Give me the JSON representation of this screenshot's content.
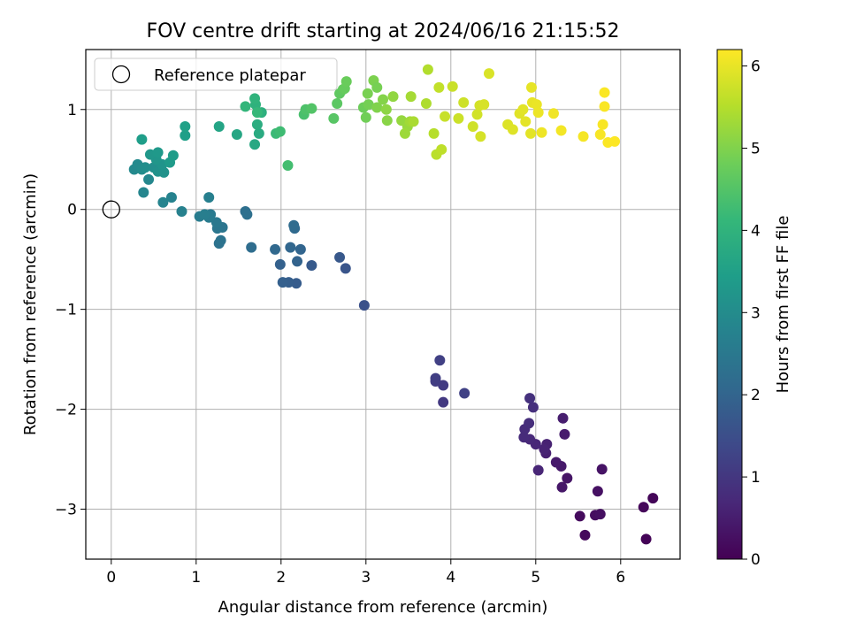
{
  "chart_data": {
    "type": "scatter",
    "title": "FOV centre drift starting at 2024/06/16 21:15:52",
    "xlabel": "Angular distance from reference (arcmin)",
    "ylabel": "Rotation from reference (arcmin)",
    "xlim": [
      -0.3,
      6.7
    ],
    "ylim": [
      -3.5,
      1.6
    ],
    "xticks": [
      0,
      1,
      2,
      3,
      4,
      5,
      6
    ],
    "yticks": [
      -3,
      -2,
      -1,
      0,
      1
    ],
    "grid": true,
    "legend": {
      "position": "top-left",
      "entries": [
        "Reference platepar"
      ]
    },
    "reference_point": {
      "x": 0,
      "y": 0
    },
    "colorbar": {
      "label": "Hours from first FF file",
      "min": 0,
      "max": 6.2,
      "ticks": [
        0,
        1,
        2,
        3,
        4,
        5,
        6
      ],
      "colormap": "viridis",
      "colormap_stops": [
        "#440154",
        "#482878",
        "#3e4989",
        "#31688e",
        "#26828e",
        "#1f9e89",
        "#35b779",
        "#6ece58",
        "#b5de2b",
        "#fde725"
      ]
    },
    "points": [
      {
        "x": 6.3,
        "y": -3.3,
        "t": 0.05
      },
      {
        "x": 6.38,
        "y": -2.89,
        "t": 0.08
      },
      {
        "x": 6.27,
        "y": -2.98,
        "t": 0.12
      },
      {
        "x": 5.58,
        "y": -3.26,
        "t": 0.15
      },
      {
        "x": 5.52,
        "y": -3.07,
        "t": 0.18
      },
      {
        "x": 5.7,
        "y": -3.06,
        "t": 0.22
      },
      {
        "x": 5.76,
        "y": -3.05,
        "t": 0.25
      },
      {
        "x": 5.73,
        "y": -2.82,
        "t": 0.28
      },
      {
        "x": 5.78,
        "y": -2.6,
        "t": 0.32
      },
      {
        "x": 5.37,
        "y": -2.69,
        "t": 0.35
      },
      {
        "x": 5.31,
        "y": -2.78,
        "t": 0.38
      },
      {
        "x": 5.3,
        "y": -2.57,
        "t": 0.42
      },
      {
        "x": 5.24,
        "y": -2.53,
        "t": 0.45
      },
      {
        "x": 5.34,
        "y": -2.25,
        "t": 0.48
      },
      {
        "x": 5.32,
        "y": -2.09,
        "t": 0.52
      },
      {
        "x": 5.12,
        "y": -2.44,
        "t": 0.55
      },
      {
        "x": 5.13,
        "y": -2.35,
        "t": 0.58
      },
      {
        "x": 5.1,
        "y": -2.4,
        "t": 0.62
      },
      {
        "x": 5.03,
        "y": -2.61,
        "t": 0.65
      },
      {
        "x": 5.0,
        "y": -2.35,
        "t": 0.68
      },
      {
        "x": 4.93,
        "y": -2.3,
        "t": 0.72
      },
      {
        "x": 4.86,
        "y": -2.28,
        "t": 0.75
      },
      {
        "x": 4.87,
        "y": -2.2,
        "t": 0.78
      },
      {
        "x": 4.92,
        "y": -2.14,
        "t": 0.82
      },
      {
        "x": 4.97,
        "y": -1.98,
        "t": 0.85
      },
      {
        "x": 4.93,
        "y": -1.89,
        "t": 0.88
      },
      {
        "x": 3.91,
        "y": -1.93,
        "t": 1.05
      },
      {
        "x": 3.91,
        "y": -1.76,
        "t": 1.08
      },
      {
        "x": 3.82,
        "y": -1.72,
        "t": 1.12
      },
      {
        "x": 3.82,
        "y": -1.69,
        "t": 1.15
      },
      {
        "x": 3.87,
        "y": -1.51,
        "t": 1.18
      },
      {
        "x": 4.16,
        "y": -1.84,
        "t": 1.22
      },
      {
        "x": 2.98,
        "y": -0.96,
        "t": 1.55
      },
      {
        "x": 2.76,
        "y": -0.59,
        "t": 1.65
      },
      {
        "x": 2.69,
        "y": -0.48,
        "t": 1.7
      },
      {
        "x": 2.36,
        "y": -0.56,
        "t": 1.75
      },
      {
        "x": 2.18,
        "y": -0.74,
        "t": 1.8
      },
      {
        "x": 2.09,
        "y": -0.73,
        "t": 1.84
      },
      {
        "x": 2.02,
        "y": -0.73,
        "t": 1.88
      },
      {
        "x": 1.99,
        "y": -0.55,
        "t": 1.92
      },
      {
        "x": 2.19,
        "y": -0.52,
        "t": 1.96
      },
      {
        "x": 2.23,
        "y": -0.4,
        "t": 2.0
      },
      {
        "x": 2.11,
        "y": -0.38,
        "t": 2.04
      },
      {
        "x": 1.93,
        "y": -0.4,
        "t": 2.08
      },
      {
        "x": 2.16,
        "y": -0.19,
        "t": 2.12
      },
      {
        "x": 2.15,
        "y": -0.16,
        "t": 2.16
      },
      {
        "x": 1.65,
        "y": -0.38,
        "t": 2.2
      },
      {
        "x": 1.58,
        "y": -0.02,
        "t": 2.24
      },
      {
        "x": 1.6,
        "y": -0.05,
        "t": 2.28
      },
      {
        "x": 1.27,
        "y": -0.34,
        "t": 2.32
      },
      {
        "x": 1.29,
        "y": -0.31,
        "t": 2.36
      },
      {
        "x": 1.31,
        "y": -0.18,
        "t": 2.4
      },
      {
        "x": 1.25,
        "y": -0.19,
        "t": 2.44
      },
      {
        "x": 1.24,
        "y": -0.13,
        "t": 2.48
      },
      {
        "x": 1.17,
        "y": -0.05,
        "t": 2.52
      },
      {
        "x": 1.15,
        "y": -0.08,
        "t": 2.56
      },
      {
        "x": 1.04,
        "y": -0.07,
        "t": 2.6
      },
      {
        "x": 1.1,
        "y": -0.05,
        "t": 2.64
      },
      {
        "x": 1.15,
        "y": 0.12,
        "t": 2.68
      },
      {
        "x": 0.83,
        "y": -0.02,
        "t": 2.72
      },
      {
        "x": 0.71,
        "y": 0.12,
        "t": 2.76
      },
      {
        "x": 0.61,
        "y": 0.07,
        "t": 2.8
      },
      {
        "x": 0.38,
        "y": 0.17,
        "t": 2.84
      },
      {
        "x": 0.44,
        "y": 0.3,
        "t": 2.88
      },
      {
        "x": 0.27,
        "y": 0.4,
        "t": 2.92
      },
      {
        "x": 0.31,
        "y": 0.45,
        "t": 2.96
      },
      {
        "x": 0.36,
        "y": 0.4,
        "t": 3.0
      },
      {
        "x": 0.4,
        "y": 0.42,
        "t": 3.04
      },
      {
        "x": 0.5,
        "y": 0.42,
        "t": 3.08
      },
      {
        "x": 0.55,
        "y": 0.38,
        "t": 3.12
      },
      {
        "x": 0.62,
        "y": 0.37,
        "t": 3.16
      },
      {
        "x": 0.6,
        "y": 0.45,
        "t": 3.2
      },
      {
        "x": 0.53,
        "y": 0.5,
        "t": 3.24
      },
      {
        "x": 0.46,
        "y": 0.55,
        "t": 3.28
      },
      {
        "x": 0.55,
        "y": 0.57,
        "t": 3.32
      },
      {
        "x": 0.69,
        "y": 0.47,
        "t": 3.36
      },
      {
        "x": 0.73,
        "y": 0.54,
        "t": 3.4
      },
      {
        "x": 0.36,
        "y": 0.7,
        "t": 3.44
      },
      {
        "x": 0.87,
        "y": 0.74,
        "t": 3.48
      },
      {
        "x": 0.87,
        "y": 0.83,
        "t": 3.52
      },
      {
        "x": 1.27,
        "y": 0.83,
        "t": 3.6
      },
      {
        "x": 1.48,
        "y": 0.75,
        "t": 3.66
      },
      {
        "x": 1.69,
        "y": 0.65,
        "t": 3.72
      },
      {
        "x": 1.74,
        "y": 0.76,
        "t": 3.78
      },
      {
        "x": 1.72,
        "y": 0.85,
        "t": 3.84
      },
      {
        "x": 1.77,
        "y": 0.97,
        "t": 3.9
      },
      {
        "x": 1.7,
        "y": 1.05,
        "t": 3.96
      },
      {
        "x": 1.69,
        "y": 1.11,
        "t": 4.02
      },
      {
        "x": 1.58,
        "y": 1.03,
        "t": 4.08
      },
      {
        "x": 1.72,
        "y": 0.97,
        "t": 4.14
      },
      {
        "x": 1.94,
        "y": 0.76,
        "t": 4.2
      },
      {
        "x": 1.99,
        "y": 0.78,
        "t": 4.26
      },
      {
        "x": 2.08,
        "y": 0.44,
        "t": 4.32
      },
      {
        "x": 2.27,
        "y": 0.95,
        "t": 4.38
      },
      {
        "x": 2.29,
        "y": 1.0,
        "t": 4.44
      },
      {
        "x": 2.36,
        "y": 1.01,
        "t": 4.5
      },
      {
        "x": 2.62,
        "y": 0.91,
        "t": 4.56
      },
      {
        "x": 2.66,
        "y": 1.06,
        "t": 4.6
      },
      {
        "x": 2.69,
        "y": 1.16,
        "t": 4.64
      },
      {
        "x": 2.73,
        "y": 1.2,
        "t": 4.68
      },
      {
        "x": 2.75,
        "y": 1.21,
        "t": 4.72
      },
      {
        "x": 2.77,
        "y": 1.28,
        "t": 4.76
      },
      {
        "x": 2.97,
        "y": 1.02,
        "t": 4.8
      },
      {
        "x": 3.0,
        "y": 0.92,
        "t": 4.84
      },
      {
        "x": 3.03,
        "y": 1.05,
        "t": 4.88
      },
      {
        "x": 3.02,
        "y": 1.16,
        "t": 4.92
      },
      {
        "x": 3.09,
        "y": 1.29,
        "t": 4.96
      },
      {
        "x": 3.13,
        "y": 1.02,
        "t": 5.0
      },
      {
        "x": 3.2,
        "y": 1.1,
        "t": 5.04
      },
      {
        "x": 3.25,
        "y": 0.89,
        "t": 5.08
      },
      {
        "x": 3.24,
        "y": 1.0,
        "t": 5.12
      },
      {
        "x": 3.32,
        "y": 1.13,
        "t": 5.16
      },
      {
        "x": 3.42,
        "y": 0.89,
        "t": 5.2
      },
      {
        "x": 3.49,
        "y": 0.83,
        "t": 5.24
      },
      {
        "x": 3.46,
        "y": 0.76,
        "t": 5.28
      },
      {
        "x": 3.52,
        "y": 0.88,
        "t": 5.32
      },
      {
        "x": 3.53,
        "y": 1.13,
        "t": 5.36
      },
      {
        "x": 3.56,
        "y": 0.88,
        "t": 5.4
      },
      {
        "x": 3.71,
        "y": 1.06,
        "t": 5.44
      },
      {
        "x": 3.73,
        "y": 1.4,
        "t": 5.48
      },
      {
        "x": 3.8,
        "y": 0.76,
        "t": 5.52
      },
      {
        "x": 3.83,
        "y": 0.55,
        "t": 5.56
      },
      {
        "x": 3.89,
        "y": 0.6,
        "t": 5.6
      },
      {
        "x": 3.86,
        "y": 1.22,
        "t": 5.64
      },
      {
        "x": 3.93,
        "y": 0.93,
        "t": 5.68
      },
      {
        "x": 4.02,
        "y": 1.23,
        "t": 5.7
      },
      {
        "x": 4.09,
        "y": 0.91,
        "t": 5.72
      },
      {
        "x": 4.15,
        "y": 1.07,
        "t": 5.74
      },
      {
        "x": 4.26,
        "y": 0.83,
        "t": 5.76
      },
      {
        "x": 4.31,
        "y": 0.95,
        "t": 5.78
      },
      {
        "x": 4.34,
        "y": 1.04,
        "t": 5.8
      },
      {
        "x": 4.35,
        "y": 0.73,
        "t": 5.82
      },
      {
        "x": 4.39,
        "y": 1.05,
        "t": 5.84
      },
      {
        "x": 4.45,
        "y": 1.36,
        "t": 5.86
      },
      {
        "x": 4.67,
        "y": 0.85,
        "t": 5.88
      },
      {
        "x": 4.73,
        "y": 0.8,
        "t": 5.9
      },
      {
        "x": 4.81,
        "y": 0.96,
        "t": 5.92
      },
      {
        "x": 4.85,
        "y": 1.0,
        "t": 5.94
      },
      {
        "x": 4.88,
        "y": 0.88,
        "t": 5.96
      },
      {
        "x": 4.95,
        "y": 1.22,
        "t": 5.98
      },
      {
        "x": 4.96,
        "y": 1.07,
        "t": 6.0
      },
      {
        "x": 5.01,
        "y": 1.05,
        "t": 6.02
      },
      {
        "x": 5.03,
        "y": 0.97,
        "t": 6.04
      },
      {
        "x": 5.07,
        "y": 0.77,
        "t": 6.06
      },
      {
        "x": 5.21,
        "y": 0.96,
        "t": 6.08
      },
      {
        "x": 5.3,
        "y": 0.79,
        "t": 6.1
      },
      {
        "x": 5.56,
        "y": 0.73,
        "t": 6.12
      },
      {
        "x": 5.76,
        "y": 0.75,
        "t": 6.14
      },
      {
        "x": 5.79,
        "y": 0.85,
        "t": 6.15
      },
      {
        "x": 5.81,
        "y": 1.03,
        "t": 6.16
      },
      {
        "x": 5.81,
        "y": 1.17,
        "t": 6.17
      },
      {
        "x": 5.85,
        "y": 0.67,
        "t": 6.18
      },
      {
        "x": 5.93,
        "y": 0.68,
        "t": 6.19
      },
      {
        "x": 4.94,
        "y": 0.76,
        "t": 5.95
      },
      {
        "x": 3.13,
        "y": 1.22,
        "t": 4.9
      }
    ]
  }
}
